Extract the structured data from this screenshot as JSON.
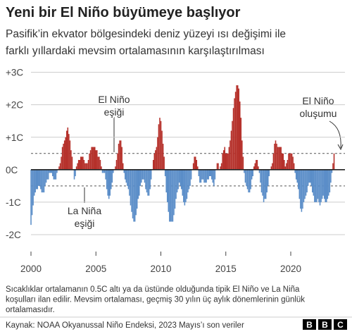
{
  "chart_data": {
    "type": "bar",
    "title": "Yeni bir El Niño büyümeye başlıyor",
    "subtitle": [
      "Pasifik’in ekvator bölgesindeki deniz yüzeyi ısı değişimi ile",
      "farklı yıllardaki mevsim ortalamasının karşılaştırılması"
    ],
    "categories": [
      "2000",
      null,
      null,
      null,
      null,
      null,
      null,
      null,
      null,
      null,
      null,
      null,
      null,
      null,
      null,
      null,
      null,
      null,
      null,
      null,
      null,
      null,
      null,
      null,
      null,
      null,
      null,
      null,
      null,
      null,
      null,
      null,
      null,
      null,
      null,
      null,
      null,
      null,
      null,
      null,
      null,
      null,
      null,
      null,
      null,
      null,
      null,
      null,
      null,
      null,
      null,
      null,
      null,
      null,
      null,
      null,
      null,
      null,
      null,
      null,
      "2005",
      null,
      null,
      null,
      null,
      null,
      null,
      null,
      null,
      null,
      null,
      null,
      null,
      null,
      null,
      null,
      null,
      null,
      null,
      null,
      null,
      null,
      null,
      null,
      null,
      null,
      null,
      null,
      null,
      null,
      null,
      null,
      null,
      null,
      null,
      null,
      null,
      null,
      null,
      null,
      null,
      null,
      null,
      null,
      null,
      null,
      null,
      null,
      null,
      null,
      null,
      null,
      null,
      null,
      null,
      null,
      null,
      null,
      null,
      null,
      "2010",
      null,
      null,
      null,
      null,
      null,
      null,
      null,
      null,
      null,
      null,
      null,
      null,
      null,
      null,
      null,
      null,
      null,
      null,
      null,
      null,
      null,
      null,
      null,
      null,
      null,
      null,
      null,
      null,
      null,
      null,
      null,
      null,
      null,
      null,
      null,
      null,
      null,
      null,
      null,
      null,
      null,
      null,
      null,
      null,
      null,
      null,
      null,
      null,
      null,
      null,
      null,
      null,
      null,
      null,
      null,
      null,
      null,
      null,
      null,
      "2015",
      null,
      null,
      null,
      null,
      null,
      null,
      null,
      null,
      null,
      null,
      null,
      null,
      null,
      null,
      null,
      null,
      null,
      null,
      null,
      null,
      null,
      null,
      null,
      null,
      null,
      null,
      null,
      null,
      null,
      null,
      null,
      null,
      null,
      null,
      null,
      null,
      null,
      null,
      null,
      null,
      null,
      null,
      null,
      null,
      null,
      null,
      null,
      null,
      null,
      null,
      null,
      null,
      null,
      null,
      null,
      null,
      null,
      null,
      null,
      "2020",
      null,
      null,
      null,
      null,
      null,
      null,
      null,
      null,
      null,
      null,
      null,
      null,
      null,
      null,
      null,
      null,
      null,
      null,
      null,
      null,
      null,
      null,
      null,
      null,
      null,
      null,
      null,
      null,
      null,
      null,
      null,
      null,
      null,
      null,
      null,
      null,
      null,
      null,
      null,
      null
    ],
    "values": [
      -1.7,
      -1.4,
      -1.1,
      -0.8,
      -0.7,
      -0.6,
      -0.6,
      -0.5,
      -0.5,
      -0.6,
      -0.7,
      -0.7,
      -0.7,
      -0.5,
      -0.4,
      -0.3,
      -0.3,
      -0.1,
      -0.1,
      -0.1,
      -0.2,
      -0.3,
      -0.3,
      -0.3,
      -0.1,
      0.0,
      0.1,
      0.2,
      0.4,
      0.7,
      0.8,
      0.9,
      1.0,
      1.2,
      1.3,
      1.1,
      0.9,
      0.6,
      0.4,
      0.0,
      -0.3,
      -0.2,
      0.1,
      0.2,
      0.3,
      0.3,
      0.4,
      0.4,
      0.4,
      0.3,
      0.2,
      0.2,
      0.2,
      0.3,
      0.5,
      0.6,
      0.7,
      0.7,
      0.7,
      0.7,
      0.6,
      0.6,
      0.4,
      0.4,
      0.3,
      0.1,
      -0.1,
      -0.1,
      -0.1,
      -0.3,
      -0.6,
      -0.8,
      -0.9,
      -0.8,
      -0.6,
      -0.4,
      -0.1,
      0.0,
      0.1,
      0.3,
      0.5,
      0.8,
      0.9,
      0.9,
      0.7,
      0.2,
      -0.1,
      -0.3,
      -0.4,
      -0.5,
      -0.6,
      -0.8,
      -1.1,
      -1.3,
      -1.5,
      -1.6,
      -1.6,
      -1.4,
      -1.2,
      -0.9,
      -0.8,
      -0.5,
      -0.4,
      -0.3,
      -0.3,
      -0.4,
      -0.6,
      -0.7,
      -0.8,
      -0.8,
      -0.6,
      -0.3,
      0.0,
      0.3,
      0.5,
      0.6,
      0.7,
      1.0,
      1.4,
      1.6,
      1.5,
      1.2,
      0.8,
      0.4,
      -0.2,
      -0.7,
      -1.0,
      -1.3,
      -1.6,
      -1.6,
      -1.6,
      -1.6,
      -1.4,
      -1.2,
      -0.9,
      -0.7,
      -0.6,
      -0.4,
      -0.5,
      -0.6,
      -0.8,
      -1.0,
      -1.1,
      -1.0,
      -0.9,
      -0.7,
      -0.6,
      -0.5,
      -0.3,
      0.0,
      0.2,
      0.4,
      0.4,
      0.3,
      0.1,
      -0.2,
      -0.4,
      -0.4,
      -0.3,
      -0.3,
      -0.4,
      -0.4,
      -0.4,
      -0.3,
      -0.3,
      -0.2,
      -0.2,
      -0.3,
      -0.4,
      -0.5,
      -0.3,
      0.0,
      0.2,
      0.2,
      0.0,
      0.1,
      0.2,
      0.5,
      0.6,
      0.7,
      0.5,
      0.5,
      0.5,
      0.7,
      0.9,
      1.2,
      1.5,
      1.9,
      2.2,
      2.4,
      2.6,
      2.6,
      2.5,
      2.1,
      1.6,
      0.9,
      0.4,
      -0.1,
      -0.4,
      -0.5,
      -0.6,
      -0.7,
      -0.7,
      -0.6,
      -0.3,
      -0.2,
      0.1,
      0.2,
      0.3,
      0.3,
      0.1,
      -0.1,
      -0.4,
      -0.7,
      -0.8,
      -1.0,
      -0.9,
      -0.9,
      -0.7,
      -0.5,
      -0.2,
      0.0,
      0.1,
      0.2,
      0.5,
      0.8,
      0.9,
      0.8,
      0.7,
      0.7,
      0.7,
      0.7,
      0.5,
      0.5,
      0.3,
      0.1,
      0.2,
      0.3,
      0.5,
      0.5,
      0.5,
      0.5,
      0.4,
      0.2,
      -0.1,
      -0.3,
      -0.4,
      -0.6,
      -0.9,
      -1.2,
      -1.3,
      -1.2,
      -1.0,
      -0.9,
      -0.8,
      -0.7,
      -0.5,
      -0.4,
      -0.4,
      -0.5,
      -0.7,
      -0.8,
      -1.0,
      -1.0,
      -1.0,
      -0.9,
      -1.0,
      -1.1,
      -1.0,
      -0.9,
      -0.8,
      -0.9,
      -1.0,
      -1.0,
      -0.9,
      -0.8,
      -0.7,
      -0.4,
      -0.1,
      0.2,
      0.5
    ],
    "positive_color": "#b5302a",
    "negative_color": "#5a8dc8",
    "ylim": [
      -2.5,
      3.1
    ],
    "yticks": [
      {
        "value": 3,
        "label": "+3C"
      },
      {
        "value": 2,
        "label": "+2C"
      },
      {
        "value": 1,
        "label": "+1C"
      },
      {
        "value": 0,
        "label": "0C"
      },
      {
        "value": -1,
        "label": "-1C"
      },
      {
        "value": -2,
        "label": "-2C"
      }
    ],
    "grid": true,
    "thresholds": [
      0.5,
      -0.5
    ],
    "annotations": [
      [
        "El Niño",
        "eşiği"
      ],
      [
        "La Niña",
        "eşiği"
      ],
      [
        "El Niño",
        "oluşumu"
      ]
    ],
    "note": [
      "Sıcaklıklar ortalamanın 0.5C altı ya da üstünde olduğunda tipik El Niño ve La Niña",
      "koşulları ilan edilir. Mevsim ortalaması, geçmiş 30 yılın üç aylık dönemlerinin günlük",
      "ortalamasıdır."
    ],
    "source": "Kaynak: NOAA Okyanussal Niño Endeksi, 2023 Mayıs’ı son veriler",
    "logo": [
      "B",
      "B",
      "C"
    ]
  }
}
